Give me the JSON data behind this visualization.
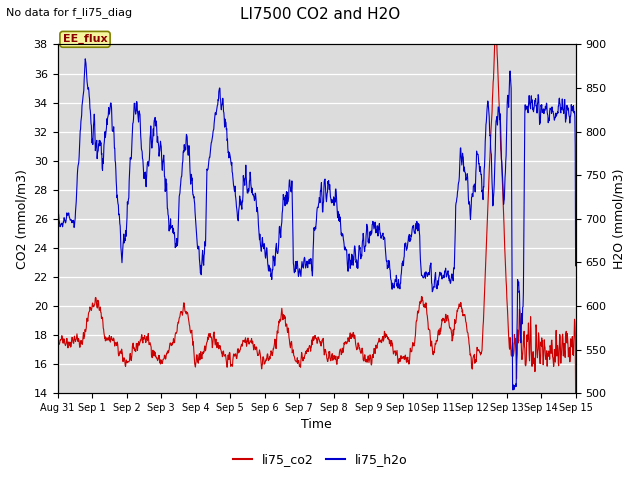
{
  "title": "LI7500 CO2 and H2O",
  "top_left_text": "No data for f_li75_diag",
  "box_label": "EE_flux",
  "xlabel": "Time",
  "ylabel_left": "CO2 (mmol/m3)",
  "ylabel_right": "H2O (mmol/m3)",
  "ylim_left": [
    14,
    38
  ],
  "ylim_right": [
    500,
    900
  ],
  "color_co2": "#cc0000",
  "color_h2o": "#0000cc",
  "background_color": "#e0e0e0",
  "xtick_labels": [
    "Aug 31",
    "Sep 1",
    "Sep 2",
    "Sep 3",
    "Sep 4",
    "Sep 5",
    "Sep 6",
    "Sep 7",
    "Sep 8",
    "Sep 9",
    "Sep 10",
    "Sep 11",
    "Sep 12",
    "Sep 13",
    "Sep 14",
    "Sep 15"
  ],
  "yticks_left": [
    14,
    16,
    18,
    20,
    22,
    24,
    26,
    28,
    30,
    32,
    34,
    36,
    38
  ],
  "yticks_right": [
    500,
    550,
    600,
    650,
    700,
    750,
    800,
    850,
    900
  ]
}
